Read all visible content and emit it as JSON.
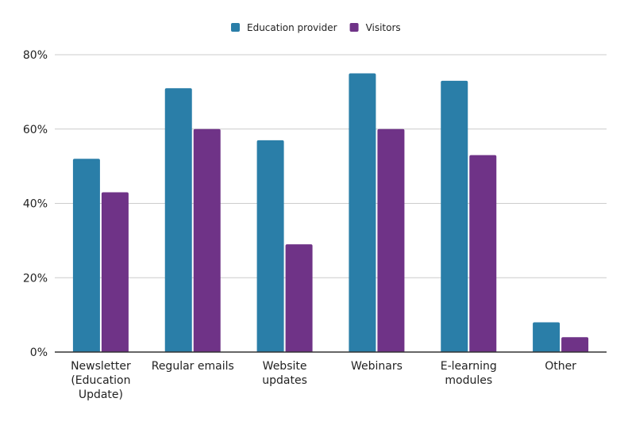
{
  "chart_data": {
    "type": "bar",
    "title": "",
    "xlabel": "",
    "ylabel": "",
    "ylim": [
      0,
      80
    ],
    "yticks": [
      0,
      20,
      40,
      60,
      80
    ],
    "ytick_labels": [
      "0%",
      "20%",
      "40%",
      "60%",
      "80%"
    ],
    "grid": true,
    "legend_position": "top-center",
    "categories": [
      [
        "Newsletter",
        "(Education",
        "Update)"
      ],
      [
        "Regular emails"
      ],
      [
        "Website",
        "updates"
      ],
      [
        "Webinars"
      ],
      [
        "E-learning",
        "modules"
      ],
      [
        "Other"
      ]
    ],
    "series": [
      {
        "name": "Education provider",
        "color": "#2a7ea8",
        "values": [
          52,
          71,
          57,
          75,
          73,
          8
        ]
      },
      {
        "name": "Visitors",
        "color": "#6f3387",
        "values": [
          43,
          60,
          29,
          60,
          53,
          4
        ]
      }
    ]
  }
}
